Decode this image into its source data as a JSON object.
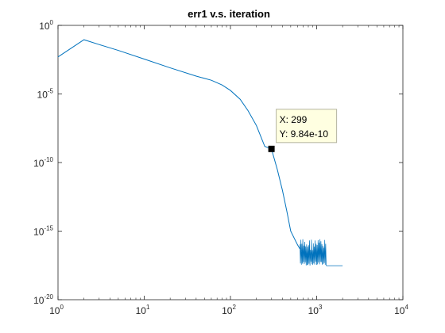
{
  "chart_data": {
    "type": "line",
    "title": "err1 v.s. iteration",
    "xlabel": "",
    "ylabel": "",
    "x_scale": "log",
    "y_scale": "log",
    "xlim": [
      1,
      10000
    ],
    "ylim": [
      1e-20,
      1
    ],
    "grid": false,
    "x_ticks": [
      {
        "base": "10",
        "exp": "0",
        "value": 1
      },
      {
        "base": "10",
        "exp": "1",
        "value": 10
      },
      {
        "base": "10",
        "exp": "2",
        "value": 100
      },
      {
        "base": "10",
        "exp": "3",
        "value": 1000
      },
      {
        "base": "10",
        "exp": "4",
        "value": 10000
      }
    ],
    "y_ticks": [
      {
        "base": "10",
        "exp": "0",
        "value": 1
      },
      {
        "base": "10",
        "exp": "-5",
        "value": 1e-05
      },
      {
        "base": "10",
        "exp": "-10",
        "value": 1e-10
      },
      {
        "base": "10",
        "exp": "-15",
        "value": 1e-15
      },
      {
        "base": "10",
        "exp": "-20",
        "value": 1e-20
      }
    ],
    "series": [
      {
        "color": "#0072bd",
        "x": [
          1,
          2,
          3,
          5,
          10,
          20,
          40,
          60,
          80,
          100,
          130,
          160,
          200,
          250,
          299,
          350,
          400,
          450,
          500,
          550,
          600,
          640
        ],
        "y": [
          0.005,
          0.09,
          0.04,
          0.015,
          0.0035,
          0.0008,
          0.0002,
          0.0001,
          4.5e-05,
          1.8e-05,
          4e-06,
          6e-07,
          5e-08,
          1.5e-09,
          9.84e-10,
          3e-11,
          1e-12,
          3e-14,
          1e-15,
          3e-16,
          1e-16,
          5e-17
        ],
        "noise_x_range": [
          640,
          1300
        ],
        "noise_y_range": [
          3e-18,
          3e-16
        ],
        "tail_x_range": [
          1300,
          2000
        ],
        "tail_y": 3e-18
      }
    ],
    "datatip": {
      "x": 299,
      "y": 9.84e-10,
      "x_text": "X: 299",
      "y_text": "Y: 9.84e-10"
    },
    "colors": {
      "line": "#0072bd",
      "axes": "#262626",
      "tip_bg": "#ffffe1",
      "tip_border": "#b4b4a0"
    }
  }
}
